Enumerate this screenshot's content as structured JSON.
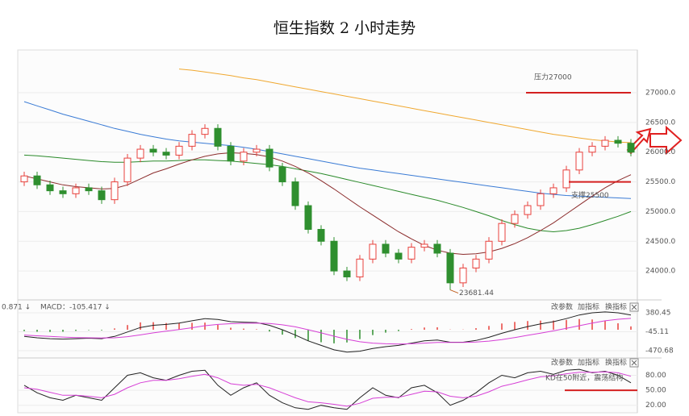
{
  "chart_data": [
    {
      "type": "candlestick",
      "title": "恒生指数 2 小时走势",
      "open": [
        25500,
        25600,
        25450,
        25350,
        25300,
        25400,
        25350,
        25200,
        25500,
        25900,
        26050,
        26000,
        25950,
        26100,
        26300,
        26400,
        26100,
        25850,
        26000,
        26050,
        25750,
        25500,
        25100,
        24700,
        24500,
        24000,
        23900,
        24200,
        24450,
        24300,
        24200,
        24400,
        24450,
        24300,
        23800,
        24050,
        24200,
        24500,
        24800,
        24950,
        25100,
        25300,
        25400,
        25700,
        26000,
        26100,
        26200,
        26150
      ],
      "high": [
        25670,
        25670,
        25520,
        25420,
        25470,
        25470,
        25420,
        25570,
        25970,
        26120,
        26120,
        26070,
        26170,
        26370,
        26470,
        26470,
        26170,
        26070,
        26120,
        26120,
        25820,
        25570,
        25170,
        24770,
        24570,
        24070,
        24270,
        24520,
        24520,
        24370,
        24470,
        24520,
        24520,
        24370,
        24120,
        24270,
        24570,
        24870,
        25020,
        25170,
        25370,
        25470,
        25770,
        26070,
        26170,
        26270,
        26270,
        26220
      ],
      "low": [
        25430,
        25380,
        25280,
        25230,
        25230,
        25280,
        25130,
        25130,
        25430,
        25830,
        25930,
        25880,
        25880,
        26030,
        26230,
        26030,
        25780,
        25780,
        25930,
        25680,
        25430,
        25030,
        24630,
        24430,
        23930,
        23830,
        23830,
        24130,
        24230,
        24130,
        24130,
        24330,
        24230,
        23681.44,
        23730,
        23980,
        24130,
        24430,
        24730,
        24880,
        25030,
        25230,
        25330,
        25630,
        25930,
        26030,
        26080,
        25930
      ],
      "close": [
        25600,
        25450,
        25350,
        25300,
        25400,
        25350,
        25200,
        25500,
        25900,
        26050,
        26000,
        25950,
        26100,
        26300,
        26400,
        26100,
        25850,
        26000,
        26050,
        25750,
        25500,
        25100,
        24700,
        24500,
        24000,
        23900,
        24200,
        24450,
        24300,
        24200,
        24400,
        24450,
        24300,
        23800,
        24050,
        24200,
        24500,
        24800,
        24950,
        25100,
        25300,
        25400,
        25700,
        26000,
        26100,
        26200,
        26150,
        26000
      ],
      "up_color": "#e8413c",
      "down_color": "#2f8f2f",
      "series": [
        {
          "color": "#f0a830",
          "values": [
            null,
            null,
            null,
            null,
            null,
            null,
            null,
            null,
            null,
            null,
            null,
            null,
            27400,
            27380,
            27350,
            27320,
            27290,
            27250,
            27220,
            27180,
            27140,
            27100,
            27060,
            27020,
            26980,
            26940,
            26900,
            26860,
            26820,
            26780,
            26740,
            26700,
            26660,
            26620,
            26580,
            26540,
            26500,
            26460,
            26420,
            26380,
            26340,
            26300,
            26270,
            26240,
            26210,
            26190,
            26170,
            26160
          ]
        },
        {
          "color": "#3a7bd5",
          "values": [
            26850,
            26780,
            26710,
            26640,
            26580,
            26520,
            26460,
            26400,
            26350,
            26300,
            26260,
            26220,
            26190,
            26170,
            26150,
            26130,
            26110,
            26080,
            26050,
            26010,
            25970,
            25930,
            25890,
            25850,
            25810,
            25770,
            25730,
            25700,
            25670,
            25640,
            25610,
            25580,
            25550,
            25520,
            25490,
            25460,
            25430,
            25400,
            25370,
            25340,
            25310,
            25290,
            25270,
            25260,
            25250,
            25240,
            25230,
            25220
          ]
        },
        {
          "color": "#2a8a2a",
          "values": [
            25950,
            25940,
            25920,
            25900,
            25880,
            25860,
            25840,
            25830,
            25830,
            25840,
            25850,
            25850,
            25860,
            25870,
            25870,
            25860,
            25850,
            25830,
            25810,
            25790,
            25760,
            25720,
            25680,
            25640,
            25590,
            25540,
            25490,
            25440,
            25390,
            25340,
            25290,
            25240,
            25190,
            25130,
            25070,
            25000,
            24930,
            24850,
            24780,
            24720,
            24680,
            24660,
            24680,
            24720,
            24780,
            24850,
            24920,
            25000
          ]
        },
        {
          "color": "#8b2c2c",
          "values": [
            25600,
            25550,
            25500,
            25450,
            25420,
            25400,
            25380,
            25390,
            25450,
            25550,
            25650,
            25720,
            25800,
            25870,
            25930,
            25970,
            25990,
            25980,
            25960,
            25920,
            25850,
            25760,
            25650,
            25520,
            25380,
            25230,
            25080,
            24940,
            24800,
            24660,
            24540,
            24430,
            24350,
            24300,
            24280,
            24290,
            24320,
            24380,
            24460,
            24560,
            24680,
            24810,
            24960,
            25110,
            25260,
            25400,
            25520,
            25620
          ]
        }
      ],
      "ylim": [
        23540,
        27720
      ],
      "yticks": [
        {
          "value": 24000,
          "label": "24000.0"
        },
        {
          "value": 24500,
          "label": "24500.0"
        },
        {
          "value": 25000,
          "label": "25000.0"
        },
        {
          "value": 25500,
          "label": "25500.0"
        },
        {
          "value": 26000,
          "label": "26000.0"
        },
        {
          "value": 26500,
          "label": "26500.0"
        },
        {
          "value": 27000,
          "label": "27000.0"
        }
      ],
      "grid": true,
      "annotations": [
        {
          "text": "压力27000",
          "value": 27000
        },
        {
          "text": "支撑25500",
          "value": 25500
        },
        {
          "text": "23681.44",
          "value": 23681.44
        }
      ],
      "toolbar": [
        "改参数",
        "加指标",
        "换指标"
      ]
    },
    {
      "type": "macd",
      "legend_text": [
        "0.871 ↓",
        "MACD：-105.417 ↓"
      ],
      "histogram": [
        -30,
        -45,
        -50,
        -45,
        -25,
        -10,
        -15,
        30,
        105,
        165,
        170,
        150,
        145,
        155,
        160,
        110,
        45,
        25,
        10,
        -40,
        -110,
        -185,
        -250,
        -280,
        -305,
        -285,
        -210,
        -120,
        -65,
        -30,
        15,
        50,
        55,
        5,
        5,
        35,
        85,
        140,
        175,
        195,
        205,
        205,
        220,
        240,
        230,
        200,
        145,
        75
      ],
      "series": [
        {
          "color": "#222222",
          "values": [
            -150,
            -180,
            -200,
            -210,
            -200,
            -190,
            -200,
            -150,
            -50,
            50,
            100,
            120,
            150,
            200,
            250,
            230,
            180,
            170,
            160,
            100,
            0,
            -120,
            -250,
            -350,
            -450,
            -500,
            -480,
            -420,
            -380,
            -350,
            -300,
            -250,
            -230,
            -280,
            -280,
            -240,
            -170,
            -80,
            0,
            70,
            130,
            180,
            250,
            330,
            380,
            400,
            380,
            330
          ]
        },
        {
          "color": "#d63fd6",
          "values": [
            -120,
            -135,
            -150,
            -165,
            -175,
            -180,
            -185,
            -180,
            -155,
            -115,
            -70,
            -30,
            5,
            45,
            90,
            120,
            135,
            145,
            150,
            140,
            110,
            65,
            0,
            -70,
            -145,
            -215,
            -270,
            -300,
            -315,
            -320,
            -315,
            -300,
            -285,
            -285,
            -285,
            -275,
            -255,
            -220,
            -175,
            -125,
            -75,
            -25,
            30,
            90,
            150,
            200,
            235,
            255
          ]
        }
      ],
      "ylim": [
        -560,
        560
      ],
      "yticks": [
        380.45,
        -45.11,
        -470.68
      ],
      "toolbar": [
        "改参数",
        "加指标",
        "换指标"
      ]
    },
    {
      "type": "kd",
      "series": [
        {
          "color": "#222222",
          "values": [
            60,
            45,
            35,
            30,
            40,
            35,
            30,
            55,
            80,
            85,
            75,
            70,
            80,
            88,
            90,
            60,
            40,
            55,
            65,
            40,
            25,
            15,
            12,
            20,
            15,
            12,
            35,
            55,
            40,
            35,
            55,
            60,
            45,
            20,
            30,
            45,
            65,
            80,
            75,
            85,
            88,
            82,
            90,
            92,
            85,
            88,
            80,
            65
          ]
        },
        {
          "color": "#d63fd6",
          "values": [
            55,
            52,
            46,
            40,
            40,
            38,
            35,
            42,
            55,
            65,
            70,
            70,
            73,
            78,
            82,
            75,
            63,
            60,
            62,
            55,
            45,
            35,
            27,
            25,
            22,
            18,
            24,
            34,
            36,
            36,
            42,
            48,
            47,
            38,
            35,
            38,
            47,
            58,
            64,
            71,
            77,
            79,
            83,
            86,
            86,
            87,
            85,
            78
          ]
        }
      ],
      "ylim": [
        5,
        105
      ],
      "yticks": [
        {
          "value": 80,
          "label": "80.00"
        },
        {
          "value": 50,
          "label": "50.00"
        },
        {
          "value": 20,
          "label": "20.00"
        }
      ],
      "annotations": [
        {
          "text": "KD在50附近，震荡结构",
          "value": 50
        }
      ],
      "toolbar": [
        "改参数",
        "加指标",
        "换指标"
      ]
    }
  ]
}
